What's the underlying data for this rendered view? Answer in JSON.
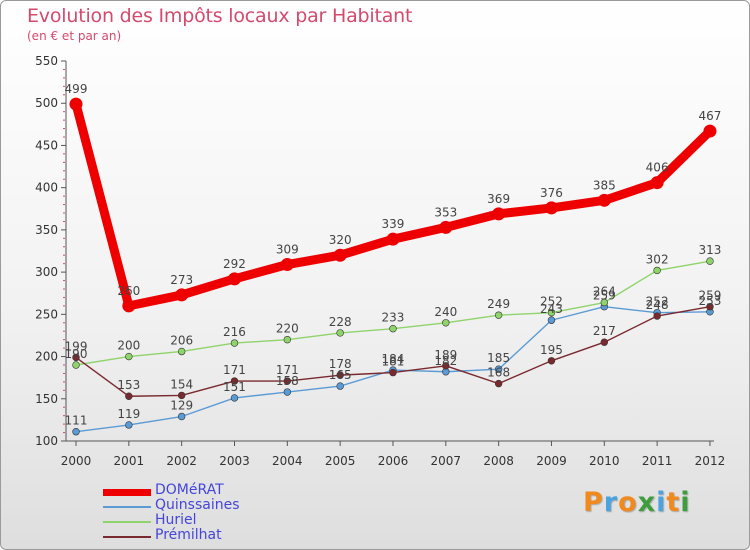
{
  "chart_data": {
    "type": "line",
    "title": "Evolution des Impôts locaux par Habitant",
    "subtitle": "(en € et par an)",
    "xlabel": "",
    "ylabel": "",
    "ylim": [
      100,
      550
    ],
    "yticks": [
      100,
      150,
      200,
      250,
      300,
      350,
      400,
      450,
      500,
      550
    ],
    "categories": [
      "2000",
      "2001",
      "2002",
      "2003",
      "2004",
      "2005",
      "2006",
      "2007",
      "2008",
      "2009",
      "2010",
      "2011",
      "2012"
    ],
    "grid": false,
    "legend_position": "bottom-left",
    "series": [
      {
        "name": "DOMéRAT",
        "color": "#ee0000",
        "emphasis": true,
        "values": [
          499,
          260,
          273,
          292,
          309,
          320,
          339,
          353,
          369,
          376,
          385,
          406,
          467
        ],
        "labels": [
          "499",
          "260",
          "273",
          "292",
          "309",
          "320",
          "339",
          "353",
          "369",
          "376",
          "385",
          "406",
          "467"
        ]
      },
      {
        "name": "Quinssaines",
        "color": "#5b9bd5",
        "emphasis": false,
        "values": [
          111,
          119,
          129,
          151,
          158,
          165,
          184,
          182,
          185,
          243,
          259,
          252,
          253
        ],
        "labels": [
          "111",
          "119",
          "129",
          "151",
          "158",
          "165",
          "184",
          "182",
          "185",
          "243",
          "259",
          "252",
          "253"
        ]
      },
      {
        "name": "Huriel",
        "color": "#8fd46b",
        "emphasis": false,
        "values": [
          190,
          200,
          206,
          216,
          220,
          228,
          233,
          240,
          249,
          252,
          264,
          302,
          313
        ],
        "labels": [
          "190",
          "200",
          "206",
          "216",
          "220",
          "228",
          "233",
          "240",
          "249",
          "252",
          "264",
          "302",
          "313"
        ]
      },
      {
        "name": "Prémilhat",
        "color": "#7a2a2e",
        "emphasis": false,
        "values": [
          199,
          153,
          154,
          171,
          171,
          178,
          181,
          189,
          168,
          195,
          217,
          248,
          259
        ],
        "labels": [
          "199",
          "153",
          "154",
          "171",
          "171",
          "178",
          "181",
          "189",
          "168",
          "195",
          "217",
          "248",
          "259"
        ]
      }
    ]
  },
  "brand": {
    "letters": [
      "P",
      "r",
      "o",
      "x",
      "i",
      "t",
      "i"
    ],
    "colors": [
      "#f08a1e",
      "#4aa3df",
      "#f08a1e",
      "#3e9d3e",
      "#4aa3df",
      "#f08a1e",
      "#3e9d3e"
    ]
  }
}
